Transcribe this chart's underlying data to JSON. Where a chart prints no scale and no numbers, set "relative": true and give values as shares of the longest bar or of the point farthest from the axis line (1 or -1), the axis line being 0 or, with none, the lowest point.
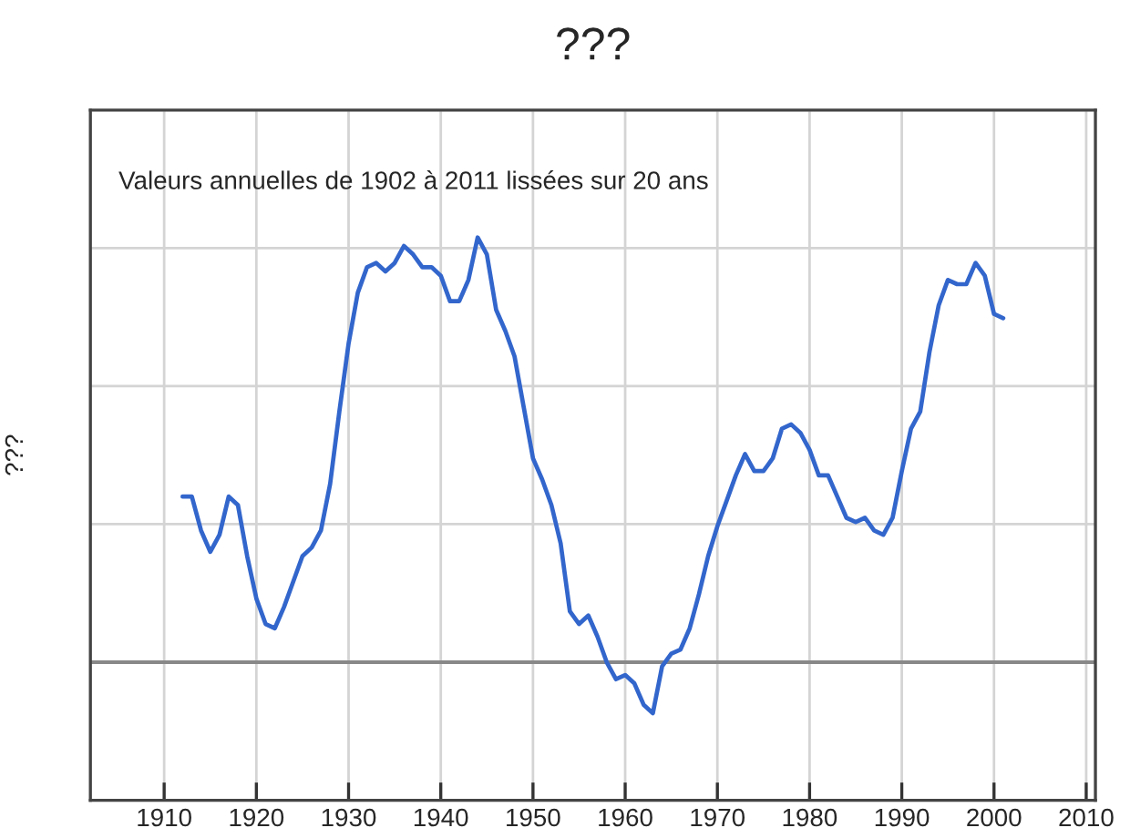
{
  "chart_data": {
    "type": "line",
    "title": "???",
    "ylabel": "???",
    "annotations": [
      "Valeurs annuelles de 1902 à 2011 lissées sur 20 ans"
    ],
    "relative": true,
    "xlim": [
      1902,
      2011
    ],
    "xticks": [
      1910,
      1920,
      1930,
      1940,
      1950,
      1960,
      1970,
      1980,
      1990,
      2000,
      2010
    ],
    "grid": true,
    "ref_lines": [
      {
        "axis": "y",
        "value": 0,
        "color": "#888888"
      }
    ],
    "x": [
      1912,
      1913,
      1914,
      1915,
      1916,
      1917,
      1918,
      1919,
      1920,
      1921,
      1922,
      1923,
      1924,
      1925,
      1926,
      1927,
      1928,
      1929,
      1930,
      1931,
      1932,
      1933,
      1934,
      1935,
      1936,
      1937,
      1938,
      1939,
      1940,
      1941,
      1942,
      1943,
      1944,
      1945,
      1946,
      1947,
      1948,
      1949,
      1950,
      1951,
      1952,
      1953,
      1954,
      1955,
      1956,
      1957,
      1958,
      1959,
      1960,
      1961,
      1962,
      1963,
      1964,
      1965,
      1966,
      1967,
      1968,
      1969,
      1970,
      1971,
      1972,
      1973,
      1974,
      1975,
      1976,
      1977,
      1978,
      1979,
      1980,
      1981,
      1982,
      1983,
      1984,
      1985,
      1986,
      1987,
      1988,
      1989,
      1990,
      1991,
      1992,
      1993,
      1994,
      1995,
      1996,
      1997,
      1998,
      1999,
      2000,
      2001
    ],
    "series": [
      {
        "color": "#3366cc",
        "values": [
          0.39,
          0.39,
          0.31,
          0.26,
          0.3,
          0.39,
          0.37,
          0.25,
          0.15,
          0.09,
          0.08,
          0.13,
          0.19,
          0.25,
          0.27,
          0.31,
          0.42,
          0.59,
          0.75,
          0.87,
          0.93,
          0.94,
          0.92,
          0.94,
          0.98,
          0.96,
          0.93,
          0.93,
          0.91,
          0.85,
          0.85,
          0.9,
          1,
          0.96,
          0.83,
          0.78,
          0.72,
          0.6,
          0.48,
          0.43,
          0.37,
          0.28,
          0.12,
          0.09,
          0.11,
          0.06,
          0.0,
          -0.04,
          -0.03,
          -0.05,
          -0.1,
          -0.12,
          -0.01,
          0.02,
          0.03,
          0.08,
          0.16,
          0.25,
          0.32,
          0.38,
          0.44,
          0.49,
          0.45,
          0.45,
          0.48,
          0.55,
          0.56,
          0.54,
          0.5,
          0.44,
          0.44,
          0.39,
          0.34,
          0.33,
          0.34,
          0.31,
          0.3,
          0.34,
          0.45,
          0.55,
          0.59,
          0.73,
          0.84,
          0.9,
          0.89,
          0.89,
          0.94,
          0.91,
          0.82,
          0.81
        ]
      }
    ]
  }
}
